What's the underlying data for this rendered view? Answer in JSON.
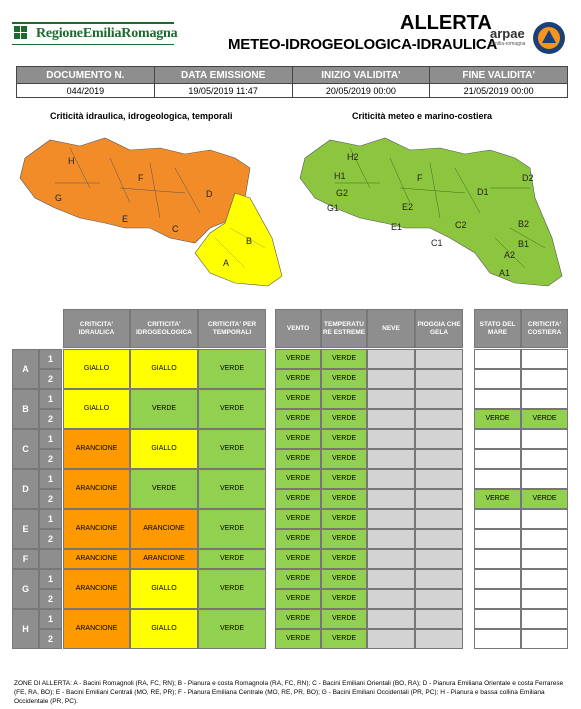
{
  "header": {
    "org_name": "RegioneEmiliaRomagna",
    "title_line1": "ALLERTA",
    "title_line2": "METEO-IDROGEOLOGICA-IDRAULICA",
    "agency": "arpae",
    "agency_sub": "emilia-romagna"
  },
  "document": {
    "columns": [
      "DOCUMENTO N.",
      "DATA EMISSIONE",
      "INIZIO VALIDITA'",
      "FINE VALIDITA'"
    ],
    "values": [
      "044/2019",
      "19/05/2019 11:47",
      "20/05/2019 00:00",
      "21/05/2019 00:00"
    ]
  },
  "maps": {
    "left_title": "Criticità idraulica, idrogeologica, temporali",
    "right_title": "Criticità meteo e marino-costiera",
    "left_labels": [
      "H",
      "G",
      "F",
      "E",
      "D",
      "C",
      "B",
      "A"
    ],
    "right_labels": [
      "H2",
      "H1",
      "G2",
      "G1",
      "F",
      "E2",
      "E1",
      "D1",
      "D2",
      "C1",
      "C2",
      "B2",
      "B1",
      "A2",
      "A1"
    ],
    "colors": {
      "orange": "#f28c28",
      "yellow": "#ffff00",
      "green": "#8cc63f"
    }
  },
  "grid": {
    "headers": {
      "idraulica": "CRITICITA' IDRAULICA",
      "idrogeologica": "CRITICITA' IDROGEOLOGICA",
      "temporali": "CRITICITA' PER TEMPORALI",
      "vento": "VENTO",
      "temperature": "TEMPERATU RE ESTREME",
      "neve": "NEVE",
      "pioggia": "PIOGGIA CHE GELA",
      "mare": "STATO DEL MARE",
      "costiera": "CRITICITA' COSTIERA"
    },
    "zones": [
      {
        "zone": "A",
        "subs": [
          "1",
          "2"
        ],
        "idraulica": "GIALLO",
        "idrogeologica": "GIALLO",
        "temporali": "VERDE",
        "vento": [
          "VERDE",
          "VERDE"
        ],
        "temperature": [
          "VERDE",
          "VERDE"
        ],
        "mare": [
          "",
          ""
        ],
        "costiera": [
          "",
          ""
        ]
      },
      {
        "zone": "B",
        "subs": [
          "1",
          "2"
        ],
        "idraulica": "GIALLO",
        "idrogeologica": "VERDE",
        "temporali": "VERDE",
        "vento": [
          "VERDE",
          "VERDE"
        ],
        "temperature": [
          "VERDE",
          "VERDE"
        ],
        "mare": [
          "",
          "VERDE"
        ],
        "costiera": [
          "",
          "VERDE"
        ]
      },
      {
        "zone": "C",
        "subs": [
          "1",
          "2"
        ],
        "idraulica": "ARANCIONE",
        "idrogeologica": "GIALLO",
        "temporali": "VERDE",
        "vento": [
          "VERDE",
          "VERDE"
        ],
        "temperature": [
          "VERDE",
          "VERDE"
        ],
        "mare": [
          "",
          ""
        ],
        "costiera": [
          "",
          ""
        ]
      },
      {
        "zone": "D",
        "subs": [
          "1",
          "2"
        ],
        "idraulica": "ARANCIONE",
        "idrogeologica": "VERDE",
        "temporali": "VERDE",
        "vento": [
          "VERDE",
          "VERDE"
        ],
        "temperature": [
          "VERDE",
          "VERDE"
        ],
        "mare": [
          "",
          "VERDE"
        ],
        "costiera": [
          "",
          "VERDE"
        ]
      },
      {
        "zone": "E",
        "subs": [
          "1",
          "2"
        ],
        "idraulica": "ARANCIONE",
        "idrogeologica": "ARANCIONE",
        "temporali": "VERDE",
        "vento": [
          "VERDE",
          "VERDE"
        ],
        "temperature": [
          "VERDE",
          "VERDE"
        ],
        "mare": [
          "",
          ""
        ],
        "costiera": [
          "",
          ""
        ]
      },
      {
        "zone": "F",
        "subs": [],
        "idraulica": "ARANCIONE",
        "idrogeologica": "ARANCIONE",
        "temporali": "VERDE",
        "vento": [
          "VERDE"
        ],
        "temperature": [
          "VERDE"
        ],
        "mare": [
          ""
        ],
        "costiera": [
          ""
        ]
      },
      {
        "zone": "G",
        "subs": [
          "1",
          "2"
        ],
        "idraulica": "ARANCIONE",
        "idrogeologica": "GIALLO",
        "temporali": "VERDE",
        "vento": [
          "VERDE",
          "VERDE"
        ],
        "temperature": [
          "VERDE",
          "VERDE"
        ],
        "mare": [
          "",
          ""
        ],
        "costiera": [
          "",
          ""
        ]
      },
      {
        "zone": "H",
        "subs": [
          "1",
          "2"
        ],
        "idraulica": "ARANCIONE",
        "idrogeologica": "GIALLO",
        "temporali": "VERDE",
        "vento": [
          "VERDE",
          "VERDE"
        ],
        "temperature": [
          "VERDE",
          "VERDE"
        ],
        "mare": [
          "",
          ""
        ],
        "costiera": [
          "",
          ""
        ]
      }
    ]
  },
  "footnote": "ZONE DI ALLERTA: A - Bacini Romagnoli (RA, FC, RN); B - Pianura e costa Romagnola (RA, FC, RN); C - Bacini Emiliani Orientali (BO, RA); D - Pianura Emiliana Orientale e costa Ferrarese (FE, RA, BO); E - Bacini Emiliani Centrali (MO, RE, PR); F - Pianura Emiliana Centrale (MO, RE, PR, BO); G - Bacini Emiliani Occidentali (PR, PC); H - Pianura e bassa collina Emiliana Occidentale (PR, PC)."
}
